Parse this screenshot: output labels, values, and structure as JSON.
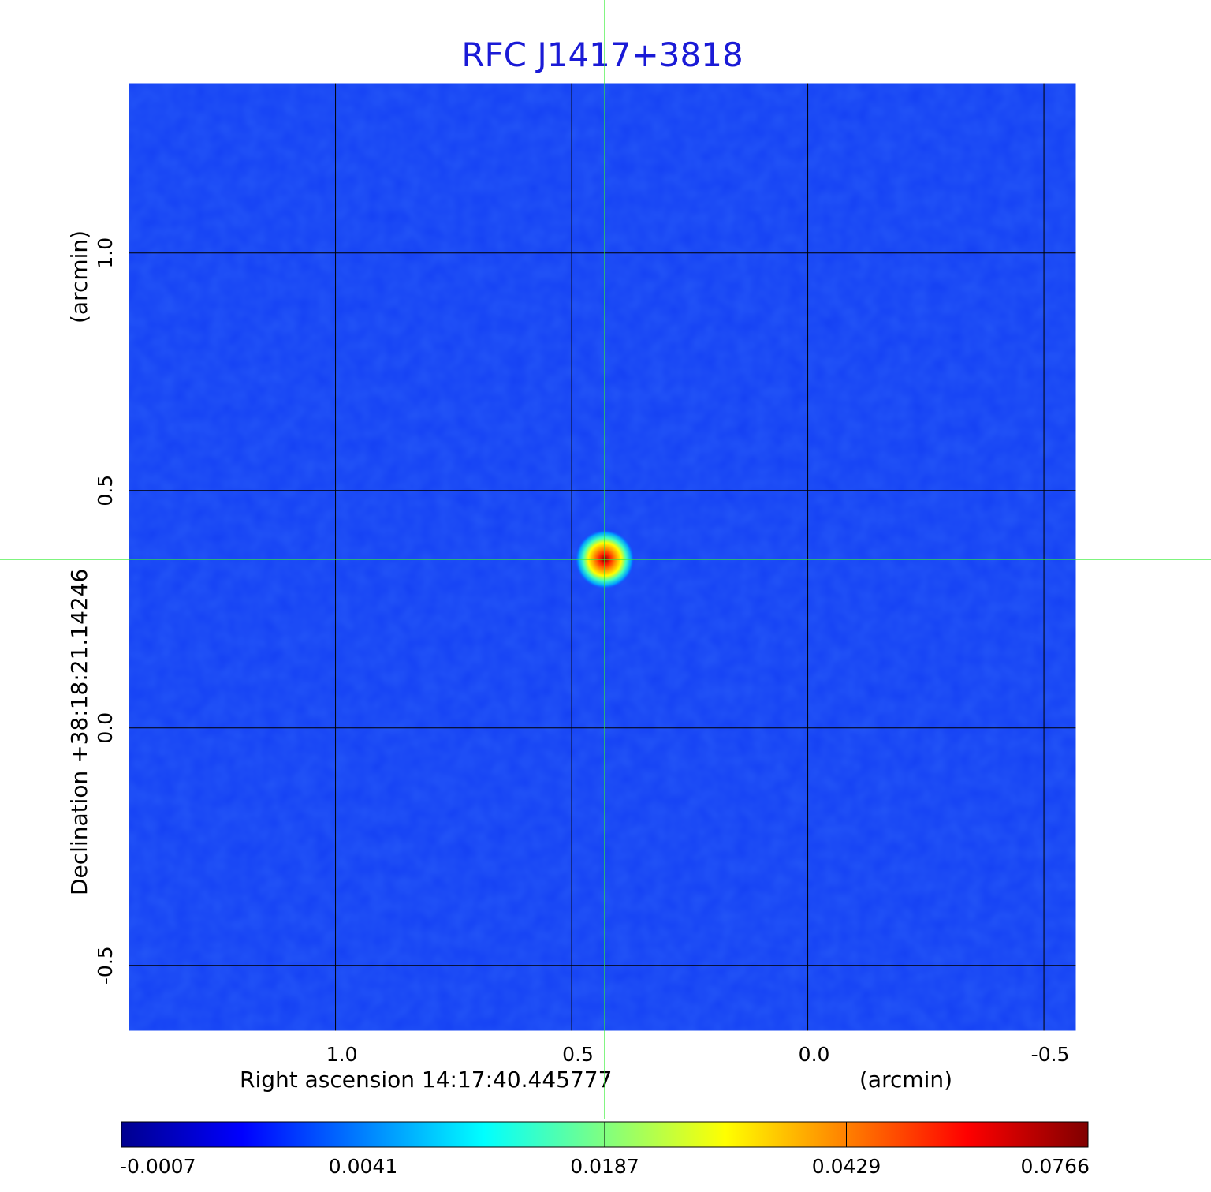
{
  "chart_data": {
    "type": "heatmap",
    "title": "RFC J1417+3818",
    "xlabel": "Right ascension  14:17:40.445777",
    "xunit": "(arcmin)",
    "ylabel": "Declination  +38:18:21.14246",
    "yunit": "(arcmin)",
    "xlim": [
      1.44,
      -0.57
    ],
    "ylim": [
      -0.64,
      1.36
    ],
    "x_ticks": [
      {
        "value": 1.0,
        "label": "1.0"
      },
      {
        "value": 0.5,
        "label": "0.5"
      },
      {
        "value": 0.0,
        "label": "0.0"
      },
      {
        "value": -0.5,
        "label": "-0.5"
      }
    ],
    "y_ticks": [
      {
        "value": 1.0,
        "label": "1.0"
      },
      {
        "value": 0.5,
        "label": "0.5"
      },
      {
        "value": 0.0,
        "label": "0.0"
      },
      {
        "value": -0.5,
        "label": "-0.5"
      }
    ],
    "grid": true,
    "source": {
      "x": 0.43,
      "y": 0.355,
      "peak": 0.0766
    },
    "crosshair": {
      "x": 0.43,
      "y": 0.355,
      "color": "#33ee33"
    },
    "colorbar": {
      "placement": "bottom",
      "ticks": [
        "-0.0007",
        "0.0041",
        "0.0187",
        "0.0429",
        "0.0766"
      ],
      "colormap": [
        "#00008f",
        "#0000ff",
        "#0080ff",
        "#00ffff",
        "#80ff80",
        "#ffff00",
        "#ff8000",
        "#ff0000",
        "#800000"
      ]
    }
  }
}
